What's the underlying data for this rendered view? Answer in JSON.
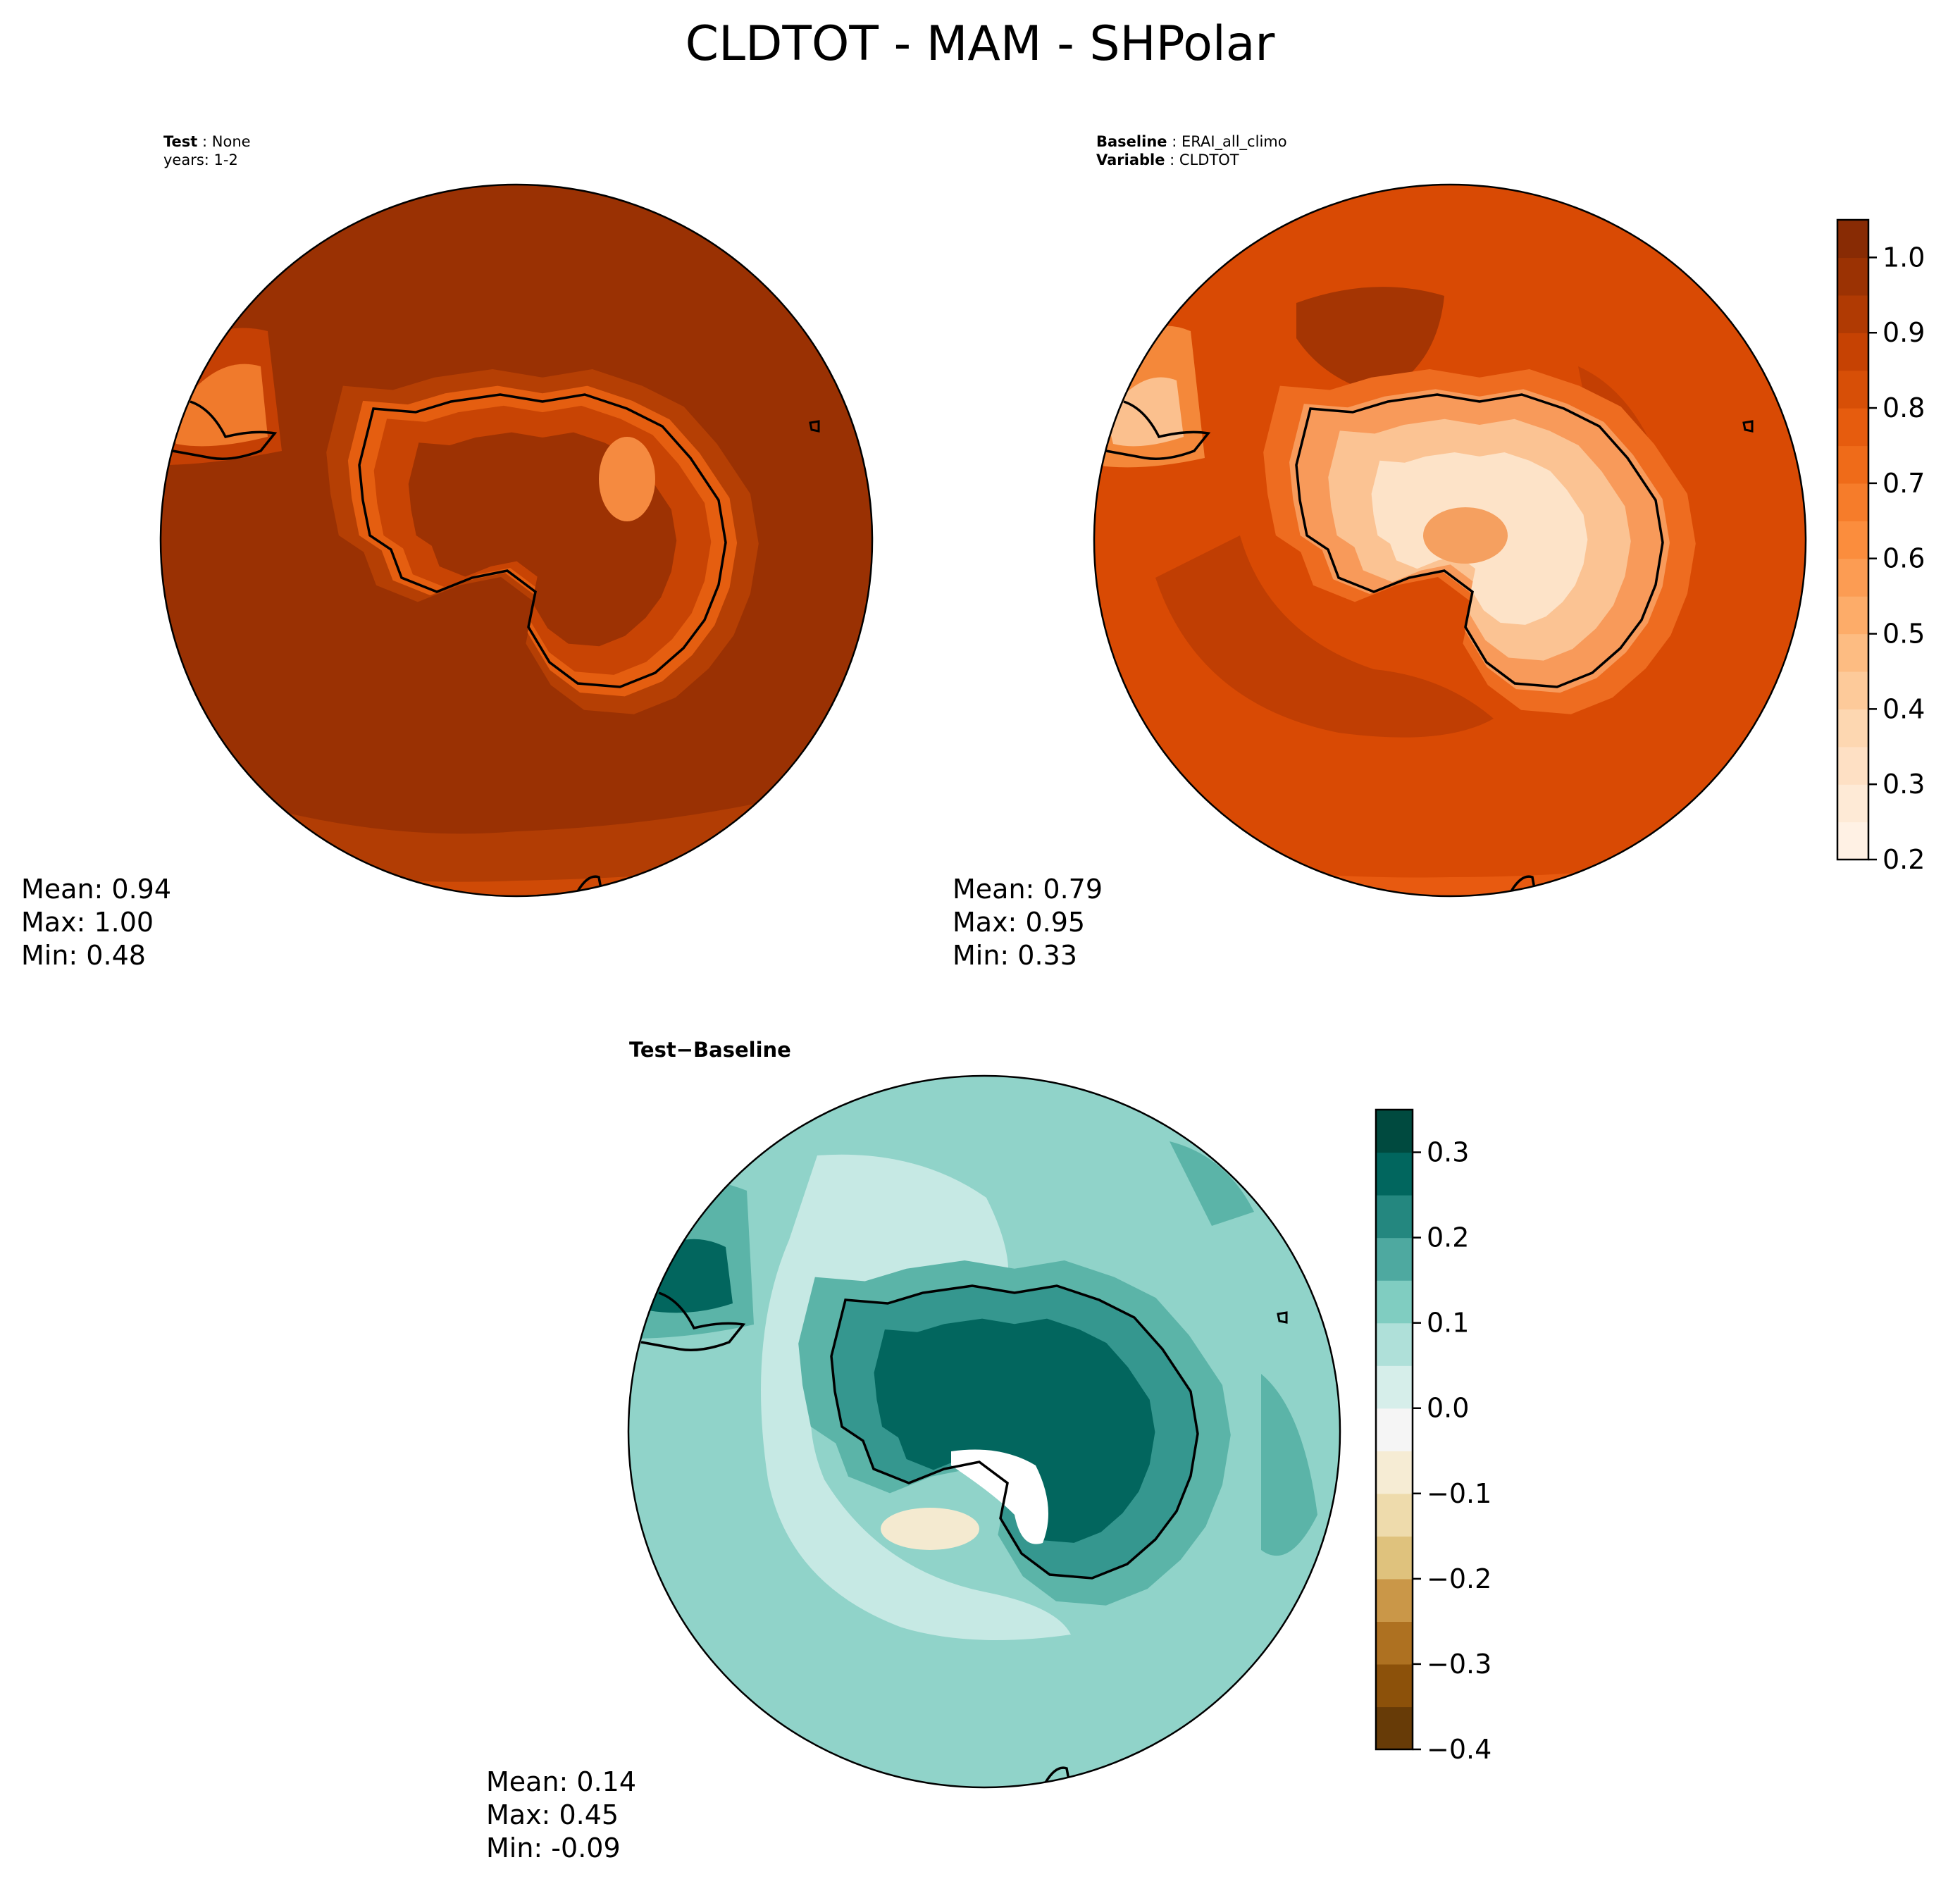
{
  "figure": {
    "title": "CLDTOT - MAM - SHPolar"
  },
  "panels": {
    "test": {
      "label_key": "Test",
      "label_val": "None",
      "label2": "years: 1-2",
      "stats": {
        "mean": "Mean:  0.94",
        "max": "Max:  1.00",
        "min": "Min:  0.48"
      }
    },
    "baseline": {
      "label_key": "Baseline",
      "label_val": "ERAI_all_climo",
      "label2_key": "Variable",
      "label2_val": "CLDTOT",
      "stats": {
        "mean": "Mean:  0.79",
        "max": "Max:  0.95",
        "min": "Min:  0.33"
      }
    },
    "diff": {
      "label_a": "Test",
      "label_op": "−",
      "label_b": "Baseline",
      "stats": {
        "mean": "Mean:  0.14",
        "max": "Max:  0.45",
        "min": "Min: -0.09"
      }
    }
  },
  "colors": {
    "oranges": [
      "#fff5eb",
      "#fee8d3",
      "#fdd8b3",
      "#fdc28c",
      "#fda762",
      "#fb8d3d",
      "#f2701d",
      "#e25609",
      "#c44103",
      "#9f3303",
      "#7f2704"
    ],
    "brbg": [
      "#543005",
      "#8c510a",
      "#bf812d",
      "#dfc27d",
      "#f6e8c3",
      "#f5f5f5",
      "#c7eae5",
      "#80cdc1",
      "#35978f",
      "#01665e",
      "#003c30"
    ],
    "test_bg": "#9a3103",
    "test_mid": "#b53f04",
    "test_ring": "#cf4a06",
    "test_land": "#df5a0d",
    "test_rim": "#f07a2c",
    "base_bg": "#d94a04",
    "base_ring": "#c33f03",
    "base_dark": "#a53503",
    "base_land": "#f6985a",
    "base_land_hi": "#fbd3ae",
    "diff_bg": "#90d3c9",
    "diff_light": "#c6e9e4",
    "diff_med": "#5bb4a8",
    "diff_dark": "#02665e",
    "diff_tan": "#f4ead0"
  },
  "colorbar_top": {
    "ticks": [
      {
        "value": 0.2,
        "label": "0.2"
      },
      {
        "value": 0.3,
        "label": "0.3"
      },
      {
        "value": 0.4,
        "label": "0.4"
      },
      {
        "value": 0.5,
        "label": "0.5"
      },
      {
        "value": 0.6,
        "label": "0.6"
      },
      {
        "value": 0.7,
        "label": "0.7"
      },
      {
        "value": 0.8,
        "label": "0.8"
      },
      {
        "value": 0.9,
        "label": "0.9"
      },
      {
        "value": 1.0,
        "label": "1.0"
      }
    ],
    "range": [
      0.2,
      1.05
    ],
    "levels": 17
  },
  "colorbar_diff": {
    "ticks": [
      {
        "value": -0.4,
        "label": "−0.4"
      },
      {
        "value": -0.3,
        "label": "−0.3"
      },
      {
        "value": -0.2,
        "label": "−0.2"
      },
      {
        "value": -0.1,
        "label": "−0.1"
      },
      {
        "value": 0.0,
        "label": "0.0"
      },
      {
        "value": 0.1,
        "label": "0.1"
      },
      {
        "value": 0.2,
        "label": "0.2"
      },
      {
        "value": 0.3,
        "label": "0.3"
      }
    ],
    "range": [
      -0.4,
      0.35
    ],
    "levels": 15
  }
}
